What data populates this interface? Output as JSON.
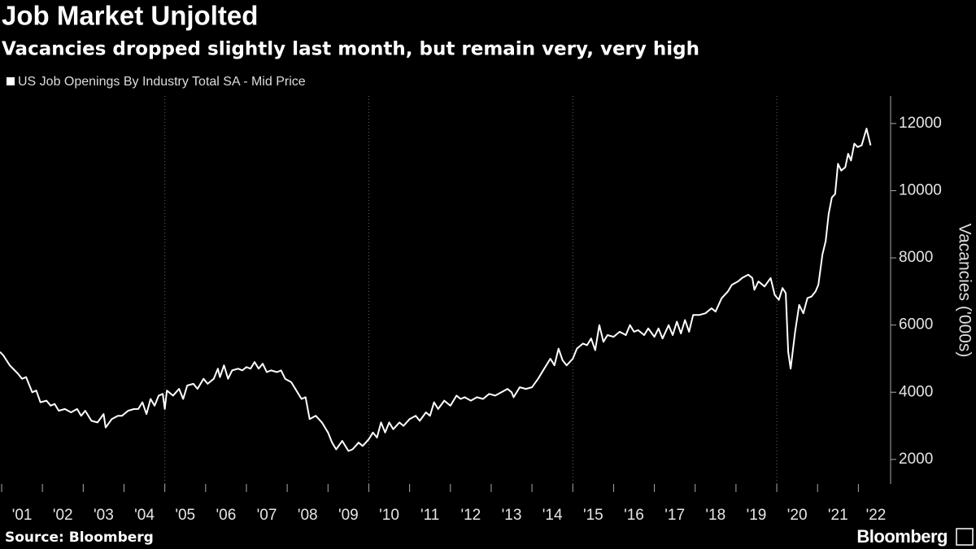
{
  "chart_data": {
    "type": "line",
    "title": "Job Market Unjolted",
    "subtitle": "Vacancies dropped slightly last month, but remain very, very high",
    "y_label": "Vacancies ('000s)",
    "source": "Source: Bloomberg",
    "brand": "Bloomberg",
    "x": [
      2000.96,
      2001.04,
      2001.2,
      2001.4,
      2001.5,
      2001.6,
      2001.75,
      2001.85,
      2001.95,
      2002.1,
      2002.2,
      2002.3,
      2002.4,
      2002.55,
      2002.7,
      2002.85,
      2002.95,
      2003.05,
      2003.2,
      2003.35,
      2003.5,
      2003.55,
      2003.7,
      2003.85,
      2003.95,
      2004.1,
      2004.25,
      2004.35,
      2004.45,
      2004.55,
      2004.65,
      2004.75,
      2004.85,
      2004.95,
      2005.0,
      2005.05,
      2005.2,
      2005.35,
      2005.45,
      2005.55,
      2005.7,
      2005.8,
      2005.95,
      2006.05,
      2006.2,
      2006.3,
      2006.35,
      2006.45,
      2006.55,
      2006.65,
      2006.8,
      2006.9,
      2007.0,
      2007.1,
      2007.2,
      2007.3,
      2007.4,
      2007.5,
      2007.6,
      2007.75,
      2007.85,
      2007.95,
      2008.1,
      2008.25,
      2008.35,
      2008.45,
      2008.55,
      2008.7,
      2008.85,
      2009.0,
      2009.1,
      2009.2,
      2009.35,
      2009.5,
      2009.6,
      2009.75,
      2009.85,
      2010.0,
      2010.1,
      2010.2,
      2010.3,
      2010.4,
      2010.5,
      2010.6,
      2010.75,
      2010.85,
      2011.0,
      2011.15,
      2011.25,
      2011.4,
      2011.5,
      2011.6,
      2011.7,
      2011.85,
      2012.0,
      2012.15,
      2012.25,
      2012.35,
      2012.5,
      2012.65,
      2012.8,
      2012.95,
      2013.1,
      2013.25,
      2013.4,
      2013.5,
      2013.55,
      2013.7,
      2013.85,
      2014.0,
      2014.15,
      2014.3,
      2014.45,
      2014.55,
      2014.65,
      2014.75,
      2014.85,
      2015.0,
      2015.1,
      2015.25,
      2015.35,
      2015.45,
      2015.55,
      2015.65,
      2015.75,
      2015.85,
      2016.0,
      2016.15,
      2016.3,
      2016.4,
      2016.5,
      2016.6,
      2016.75,
      2016.85,
      2017.0,
      2017.1,
      2017.2,
      2017.35,
      2017.45,
      2017.55,
      2017.65,
      2017.75,
      2017.85,
      2017.95,
      2018.1,
      2018.25,
      2018.4,
      2018.5,
      2018.65,
      2018.8,
      2018.9,
      2019.05,
      2019.15,
      2019.3,
      2019.4,
      2019.45,
      2019.55,
      2019.7,
      2019.85,
      2019.95,
      2020.05,
      2020.14,
      2020.22,
      2020.28,
      2020.34,
      2020.45,
      2020.55,
      2020.65,
      2020.75,
      2020.85,
      2020.95,
      2021.02,
      2021.12,
      2021.2,
      2021.27,
      2021.35,
      2021.43,
      2021.5,
      2021.58,
      2021.68,
      2021.75,
      2021.82,
      2021.9,
      2021.98,
      2022.08,
      2022.2,
      2022.3
    ],
    "series": [
      {
        "name": "US Job Openings By Industry Total SA - Mid Price",
        "color": "#ffffff",
        "values": [
          5200,
          5100,
          4800,
          4550,
          4400,
          4450,
          4000,
          4050,
          3700,
          3750,
          3600,
          3650,
          3450,
          3500,
          3400,
          3500,
          3300,
          3450,
          3150,
          3100,
          3350,
          2950,
          3200,
          3300,
          3300,
          3450,
          3500,
          3500,
          3700,
          3350,
          3800,
          3600,
          3900,
          3950,
          3500,
          4050,
          3900,
          4100,
          3800,
          4200,
          4250,
          4100,
          4400,
          4250,
          4400,
          4700,
          4450,
          4800,
          4400,
          4650,
          4700,
          4650,
          4750,
          4700,
          4900,
          4700,
          4850,
          4600,
          4650,
          4600,
          4650,
          4400,
          4300,
          4000,
          3800,
          3850,
          3200,
          3300,
          3100,
          2800,
          2500,
          2300,
          2550,
          2250,
          2300,
          2500,
          2400,
          2600,
          2800,
          2650,
          3100,
          2800,
          3100,
          2900,
          3100,
          3000,
          3200,
          3300,
          3150,
          3400,
          3300,
          3700,
          3500,
          3750,
          3600,
          3900,
          3800,
          3850,
          3750,
          3850,
          3800,
          3950,
          3900,
          4000,
          4100,
          4000,
          3850,
          4150,
          4100,
          4150,
          4400,
          4700,
          5000,
          4800,
          5300,
          4950,
          4800,
          5000,
          5300,
          5450,
          5400,
          5600,
          5250,
          6000,
          5500,
          5700,
          5650,
          5800,
          5700,
          6000,
          5800,
          5850,
          5700,
          5900,
          5650,
          5900,
          5600,
          6000,
          5700,
          6100,
          5750,
          6150,
          5800,
          6300,
          6300,
          6350,
          6500,
          6400,
          6800,
          7000,
          7200,
          7300,
          7400,
          7500,
          7400,
          7050,
          7300,
          7150,
          7400,
          6900,
          6750,
          7100,
          6950,
          5200,
          4700,
          5800,
          6600,
          6350,
          6800,
          6850,
          7000,
          7200,
          8100,
          8500,
          9300,
          9800,
          9900,
          10800,
          10600,
          10700,
          11100,
          10900,
          11400,
          11300,
          11350,
          11850,
          11350
        ]
      }
    ],
    "xlim": [
      2000.96,
      2022.79
    ],
    "xticks": [
      {
        "value": 2001,
        "label": "'01"
      },
      {
        "value": 2002,
        "label": "'02"
      },
      {
        "value": 2003,
        "label": "'03"
      },
      {
        "value": 2004,
        "label": "'04"
      },
      {
        "value": 2005,
        "label": "'05"
      },
      {
        "value": 2006,
        "label": "'06"
      },
      {
        "value": 2007,
        "label": "'07"
      },
      {
        "value": 2008,
        "label": "'08"
      },
      {
        "value": 2009,
        "label": "'09"
      },
      {
        "value": 2010,
        "label": "'10"
      },
      {
        "value": 2011,
        "label": "'11"
      },
      {
        "value": 2012,
        "label": "'12"
      },
      {
        "value": 2013,
        "label": "'13"
      },
      {
        "value": 2014,
        "label": "'14"
      },
      {
        "value": 2015,
        "label": "'15"
      },
      {
        "value": 2016,
        "label": "'16"
      },
      {
        "value": 2017,
        "label": "'17"
      },
      {
        "value": 2018,
        "label": "'18"
      },
      {
        "value": 2019,
        "label": "'19"
      },
      {
        "value": 2020,
        "label": "'20"
      },
      {
        "value": 2021,
        "label": "'21"
      },
      {
        "value": 2022,
        "label": "'22"
      }
    ],
    "xgrid": [
      2005,
      2010,
      2015,
      2020
    ],
    "ylim": [
      1270,
      12820
    ],
    "yticks": [
      2000,
      4000,
      6000,
      8000,
      10000,
      12000
    ]
  }
}
